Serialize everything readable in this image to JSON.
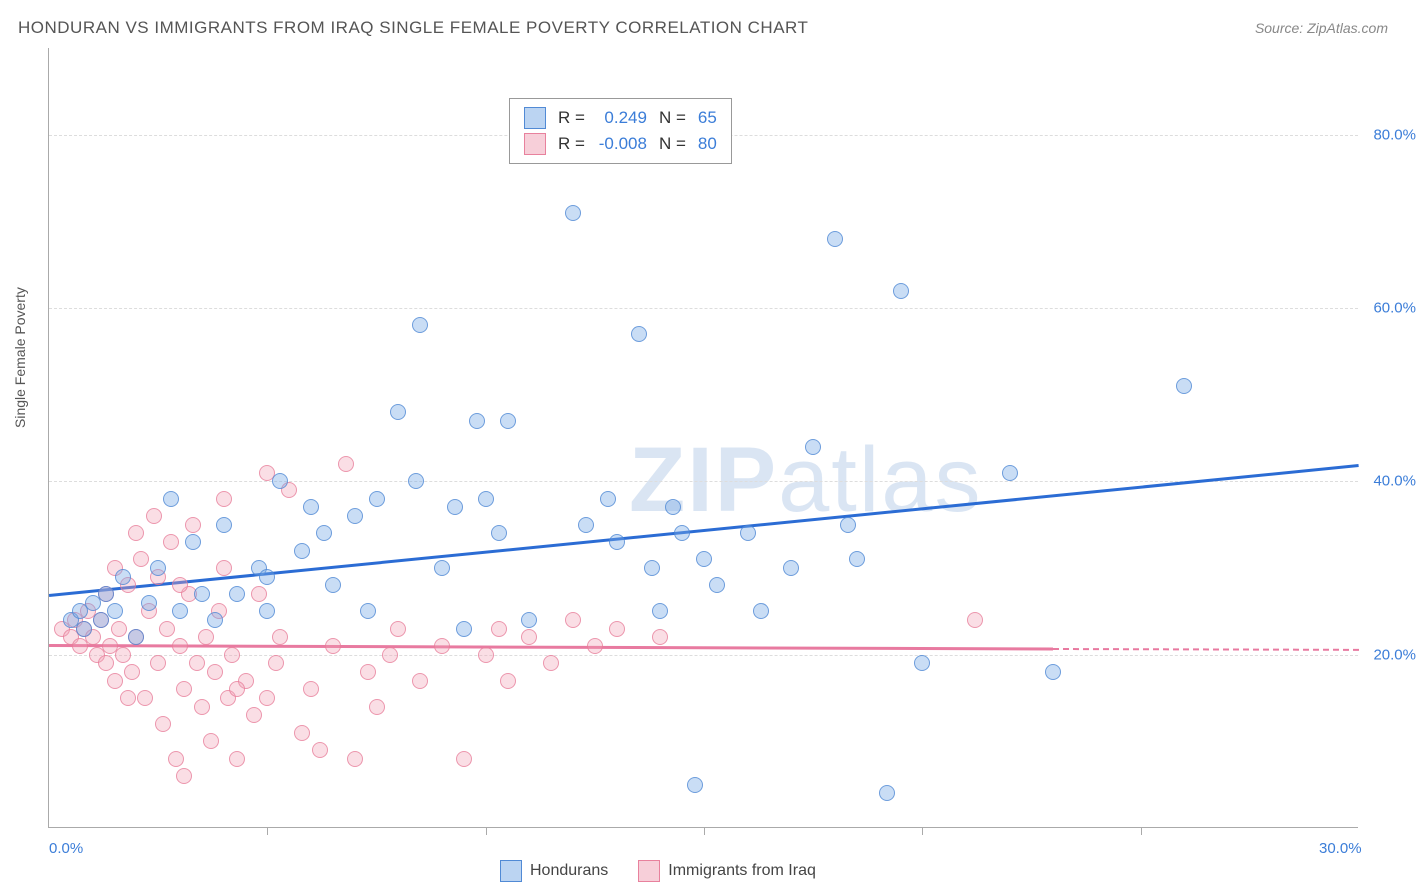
{
  "title": "HONDURAN VS IMMIGRANTS FROM IRAQ SINGLE FEMALE POVERTY CORRELATION CHART",
  "source": "Source: ZipAtlas.com",
  "ylabel": "Single Female Poverty",
  "watermark_bold": "ZIP",
  "watermark_rest": "atlas",
  "chart": {
    "type": "scatter",
    "xlim": [
      0,
      30
    ],
    "ylim": [
      0,
      90
    ],
    "x_ticks_major": [
      0,
      30
    ],
    "x_ticks_minor": [
      5,
      10,
      15,
      20,
      25
    ],
    "y_gridlines": [
      20,
      40,
      60,
      80
    ],
    "y_tick_labels": [
      "20.0%",
      "40.0%",
      "60.0%",
      "80.0%"
    ],
    "x_tick_labels": {
      "0": "0.0%",
      "30": "30.0%"
    },
    "background_color": "#ffffff",
    "grid_color": "#dddddd",
    "axis_color": "#aaaaaa",
    "series": {
      "hondurans": {
        "label": "Hondurans",
        "color_fill": "rgba(120,170,230,0.4)",
        "color_stroke": "rgba(70,130,210,0.7)",
        "r_label": "R =",
        "r_value": "0.249",
        "n_label": "N =",
        "n_value": "65",
        "trend": {
          "x1": 0,
          "y1": 27,
          "x2": 30,
          "y2": 42,
          "color": "#2b6cd4"
        },
        "points": [
          [
            0.5,
            24
          ],
          [
            0.7,
            25
          ],
          [
            0.8,
            23
          ],
          [
            1.0,
            26
          ],
          [
            1.2,
            24
          ],
          [
            1.3,
            27
          ],
          [
            1.5,
            25
          ],
          [
            1.7,
            29
          ],
          [
            2.0,
            22
          ],
          [
            2.3,
            26
          ],
          [
            2.5,
            30
          ],
          [
            2.8,
            38
          ],
          [
            3.0,
            25
          ],
          [
            3.3,
            33
          ],
          [
            3.5,
            27
          ],
          [
            3.8,
            24
          ],
          [
            4.0,
            35
          ],
          [
            4.3,
            27
          ],
          [
            4.8,
            30
          ],
          [
            5.0,
            25
          ],
          [
            5.0,
            29
          ],
          [
            5.3,
            40
          ],
          [
            5.8,
            32
          ],
          [
            6.0,
            37
          ],
          [
            6.5,
            28
          ],
          [
            7.0,
            36
          ],
          [
            7.3,
            25
          ],
          [
            7.5,
            38
          ],
          [
            8.0,
            48
          ],
          [
            8.5,
            58
          ],
          [
            9.0,
            30
          ],
          [
            9.3,
            37
          ],
          [
            9.5,
            23
          ],
          [
            9.8,
            47
          ],
          [
            10.0,
            38
          ],
          [
            10.3,
            34
          ],
          [
            10.5,
            47
          ],
          [
            11.0,
            24
          ],
          [
            12.0,
            71
          ],
          [
            12.3,
            35
          ],
          [
            12.8,
            38
          ],
          [
            13.0,
            33
          ],
          [
            13.5,
            57
          ],
          [
            13.8,
            30
          ],
          [
            14.0,
            25
          ],
          [
            14.3,
            37
          ],
          [
            14.5,
            34
          ],
          [
            15.0,
            31
          ],
          [
            15.3,
            28
          ],
          [
            16.0,
            34
          ],
          [
            16.3,
            25
          ],
          [
            17.0,
            30
          ],
          [
            17.5,
            44
          ],
          [
            18.0,
            68
          ],
          [
            18.3,
            35
          ],
          [
            18.5,
            31
          ],
          [
            19.2,
            4
          ],
          [
            20.0,
            19
          ],
          [
            22.0,
            41
          ],
          [
            23.0,
            18
          ],
          [
            26.0,
            51
          ],
          [
            19.5,
            62
          ],
          [
            14.8,
            5
          ],
          [
            8.4,
            40
          ],
          [
            6.3,
            34
          ]
        ]
      },
      "iraq": {
        "label": "Immigrants from Iraq",
        "color_fill": "rgba(240,160,180,0.35)",
        "color_stroke": "rgba(230,120,150,0.7)",
        "r_label": "R =",
        "r_value": "-0.008",
        "n_label": "N =",
        "n_value": "80",
        "trend": {
          "x1": 0,
          "y1": 21.2,
          "x2": 23,
          "y2": 20.8,
          "color": "#e87aa0"
        },
        "trend_dash": {
          "x1": 23,
          "y1": 20.8,
          "x2": 30,
          "y2": 20.7
        },
        "points": [
          [
            0.3,
            23
          ],
          [
            0.5,
            22
          ],
          [
            0.6,
            24
          ],
          [
            0.7,
            21
          ],
          [
            0.8,
            23
          ],
          [
            0.9,
            25
          ],
          [
            1.0,
            22
          ],
          [
            1.1,
            20
          ],
          [
            1.2,
            24
          ],
          [
            1.3,
            19
          ],
          [
            1.4,
            21
          ],
          [
            1.5,
            17
          ],
          [
            1.6,
            23
          ],
          [
            1.7,
            20
          ],
          [
            1.8,
            28
          ],
          [
            1.9,
            18
          ],
          [
            2.0,
            22
          ],
          [
            2.1,
            31
          ],
          [
            2.2,
            15
          ],
          [
            2.3,
            25
          ],
          [
            2.4,
            36
          ],
          [
            2.5,
            19
          ],
          [
            2.6,
            12
          ],
          [
            2.7,
            23
          ],
          [
            2.8,
            33
          ],
          [
            2.9,
            8
          ],
          [
            3.0,
            21
          ],
          [
            3.1,
            16
          ],
          [
            3.2,
            27
          ],
          [
            3.3,
            35
          ],
          [
            3.4,
            19
          ],
          [
            3.5,
            14
          ],
          [
            3.6,
            22
          ],
          [
            3.7,
            10
          ],
          [
            3.8,
            18
          ],
          [
            3.9,
            25
          ],
          [
            4.0,
            30
          ],
          [
            4.1,
            15
          ],
          [
            4.2,
            20
          ],
          [
            4.3,
            8
          ],
          [
            4.5,
            17
          ],
          [
            4.7,
            13
          ],
          [
            4.8,
            27
          ],
          [
            5.0,
            41
          ],
          [
            5.2,
            19
          ],
          [
            5.3,
            22
          ],
          [
            5.5,
            39
          ],
          [
            5.8,
            11
          ],
          [
            6.0,
            16
          ],
          [
            6.2,
            9
          ],
          [
            6.5,
            21
          ],
          [
            6.8,
            42
          ],
          [
            7.0,
            8
          ],
          [
            7.3,
            18
          ],
          [
            7.5,
            14
          ],
          [
            7.8,
            20
          ],
          [
            8.0,
            23
          ],
          [
            8.5,
            17
          ],
          [
            9.0,
            21
          ],
          [
            9.5,
            8
          ],
          [
            10.0,
            20
          ],
          [
            10.3,
            23
          ],
          [
            10.5,
            17
          ],
          [
            11.0,
            22
          ],
          [
            11.5,
            19
          ],
          [
            12.0,
            24
          ],
          [
            12.5,
            21
          ],
          [
            13.0,
            23
          ],
          [
            14.0,
            22
          ],
          [
            21.2,
            24
          ],
          [
            3.1,
            6
          ],
          [
            2.0,
            34
          ],
          [
            1.5,
            30
          ],
          [
            4.0,
            38
          ],
          [
            4.3,
            16
          ],
          [
            5.0,
            15
          ],
          [
            3.0,
            28
          ],
          [
            2.5,
            29
          ],
          [
            1.8,
            15
          ],
          [
            1.3,
            27
          ]
        ]
      }
    }
  },
  "stats_box": {
    "rows": [
      {
        "swatch": "blue",
        "r": "0.249",
        "n": "65"
      },
      {
        "swatch": "pink",
        "r": "-0.008",
        "n": "80"
      }
    ]
  }
}
